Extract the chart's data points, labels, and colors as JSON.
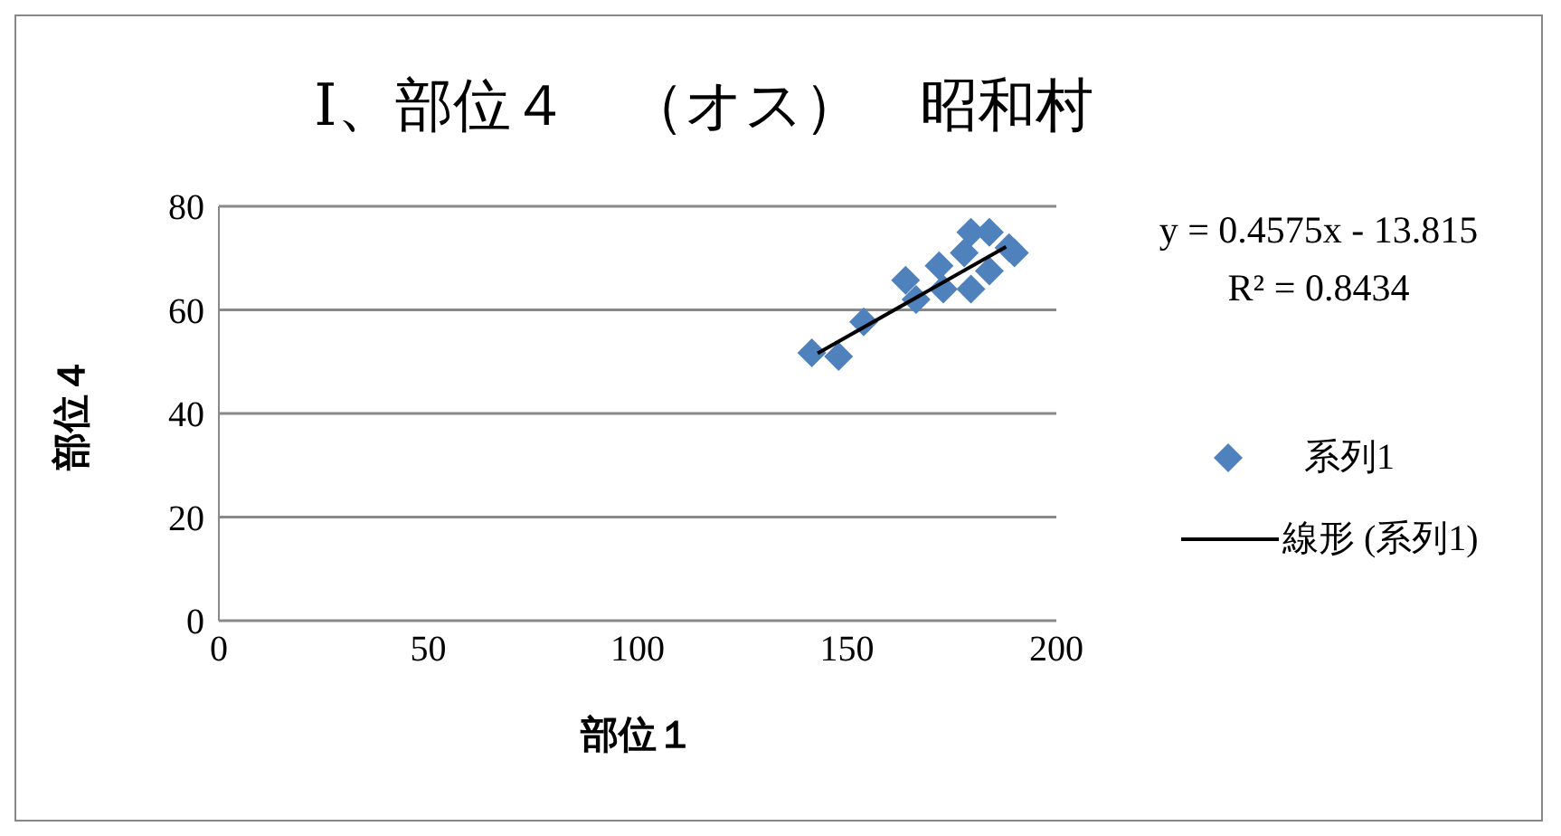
{
  "chart_data": {
    "type": "scatter",
    "title": "Ⅰ、部位４　（オス）　昭和村",
    "xlabel": "部位１",
    "ylabel": "部位４",
    "xlim": [
      0,
      200
    ],
    "xticks": [
      0,
      50,
      100,
      150,
      200
    ],
    "ylim": [
      0,
      80
    ],
    "yticks": [
      0,
      20,
      40,
      60,
      80
    ],
    "grid": "y",
    "legend": "right",
    "marker": "diamond",
    "series": [
      {
        "name": "系列1",
        "color": "#4f81bd",
        "x": [
          141.6,
          148,
          154,
          164,
          166.5,
          172,
          173,
          178,
          179.6,
          184,
          179.6,
          188.7,
          190,
          184
        ],
        "values": [
          51.7,
          51,
          57.7,
          65.7,
          62,
          68.5,
          64,
          71,
          75,
          75,
          64,
          72,
          71,
          67.5
        ]
      },
      {
        "name": "線形 (系列1)",
        "type": "line",
        "color": "#000000",
        "marker": "none",
        "x": [
          143,
          188
        ],
        "values": [
          51.6,
          72.2
        ]
      }
    ],
    "annotations": [
      "y = 0.4575x - 13.815",
      "R² = 0.8434"
    ]
  }
}
